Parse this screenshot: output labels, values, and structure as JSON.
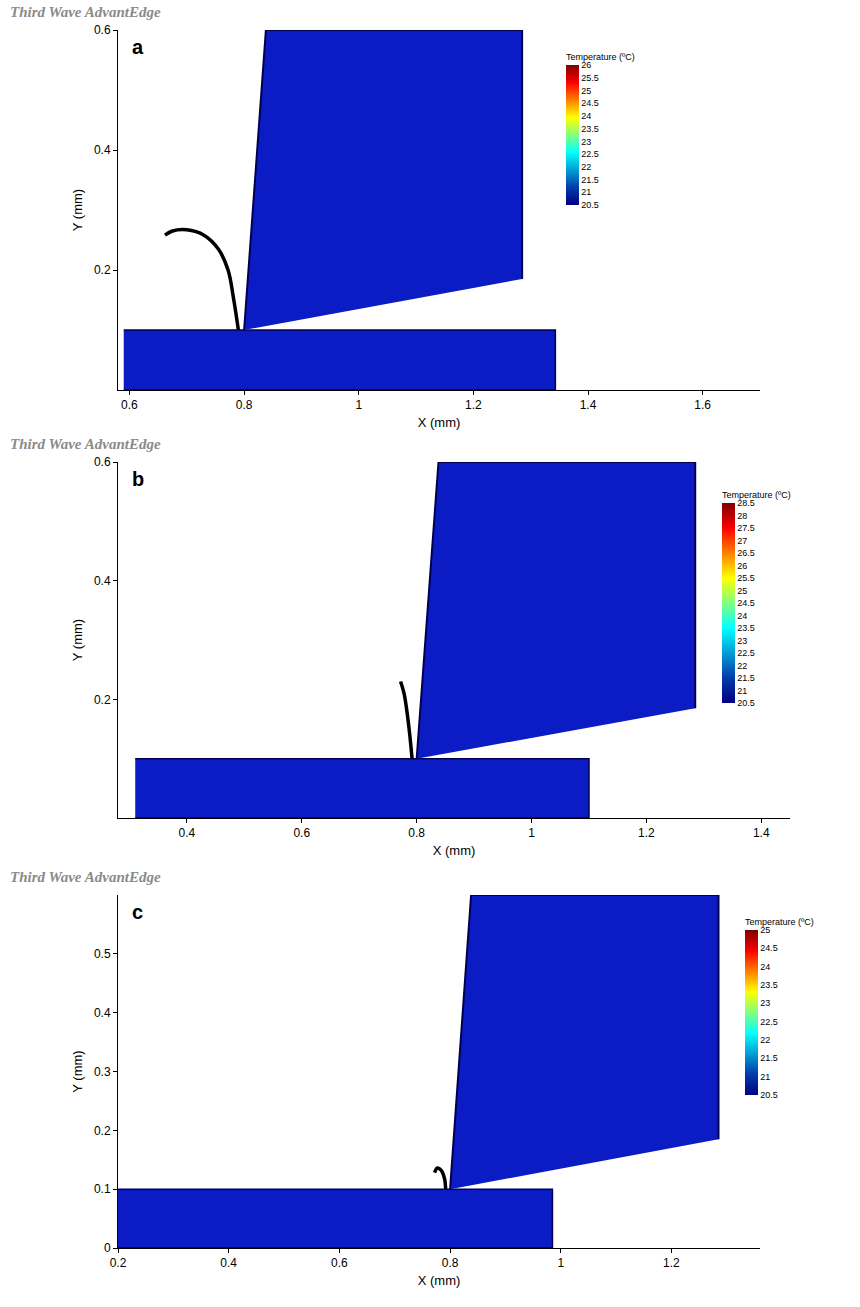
{
  "chart_data": [
    {
      "type": "simulation",
      "panel": "a",
      "watermark": "Third Wave AdvantEdge",
      "x_label": "X (mm)",
      "y_label": "Y (mm)",
      "xlim": [
        0.58,
        1.7
      ],
      "xticks": [
        0.6,
        0.8,
        1,
        1.2,
        1.4,
        1.6
      ],
      "ylim": [
        0,
        0.6
      ],
      "yticks": [
        0.2,
        0.4,
        0.6
      ],
      "color": "#0c1cc4",
      "workpiece": {
        "x": [
          0.59,
          1.343,
          1.343,
          0.59
        ],
        "y": [
          0,
          0,
          0.1,
          0.1
        ]
      },
      "tool": {
        "x": [
          0.8,
          0.838,
          1.285,
          1.285
        ],
        "y": [
          0.1,
          0.6,
          0.6,
          0.185
        ]
      },
      "chip": {
        "x": [
          0.79,
          0.782,
          0.772,
          0.755,
          0.73,
          0.7,
          0.675,
          0.662
        ],
        "y": [
          0.1,
          0.15,
          0.2,
          0.235,
          0.258,
          0.267,
          0.265,
          0.258
        ]
      },
      "colorbar": {
        "title": "Temperature (ºC)",
        "range": [
          20.5,
          26
        ],
        "ticks": [
          20.5,
          21,
          21.5,
          22,
          22.5,
          23,
          23.5,
          24,
          24.5,
          25,
          25.5,
          26
        ]
      }
    },
    {
      "type": "simulation",
      "panel": "b",
      "watermark": "Third Wave AdvantEdge",
      "x_label": "X (mm)",
      "y_label": "Y (mm)",
      "xlim": [
        0.28,
        1.45
      ],
      "xticks": [
        0.4,
        0.6,
        0.8,
        1,
        1.2,
        1.4
      ],
      "ylim": [
        0,
        0.6
      ],
      "yticks": [
        0.2,
        0.4,
        0.6
      ],
      "color": "#0c1cc4",
      "workpiece": {
        "x": [
          0.31,
          1.1,
          1.1,
          0.31
        ],
        "y": [
          0,
          0,
          0.1,
          0.1
        ]
      },
      "tool": {
        "x": [
          0.8,
          0.838,
          1.285,
          1.285
        ],
        "y": [
          0.1,
          0.6,
          0.6,
          0.185
        ]
      },
      "chip": {
        "x": [
          0.792,
          0.788,
          0.783,
          0.778,
          0.772
        ],
        "y": [
          0.1,
          0.14,
          0.18,
          0.21,
          0.23
        ]
      },
      "colorbar": {
        "title": "Temperature (ºC)",
        "range": [
          20.5,
          28.5
        ],
        "ticks": [
          20.5,
          21,
          21.5,
          22,
          22.5,
          23,
          23.5,
          24,
          24.5,
          25,
          25.5,
          26,
          26.5,
          27,
          27.5,
          28,
          28.5
        ]
      }
    },
    {
      "type": "simulation",
      "panel": "c",
      "watermark": "Third Wave AdvantEdge",
      "x_label": "X (mm)",
      "y_label": "Y (mm)",
      "xlim": [
        0.2,
        1.36
      ],
      "xticks": [
        0.2,
        0.4,
        0.6,
        0.8,
        1,
        1.2
      ],
      "ylim": [
        0,
        0.6
      ],
      "yticks": [
        0,
        0.1,
        0.2,
        0.3,
        0.4,
        0.5
      ],
      "color": "#0c1cc4",
      "workpiece": {
        "x": [
          0.2,
          0.985,
          0.985,
          0.2
        ],
        "y": [
          0,
          0,
          0.1,
          0.1
        ]
      },
      "tool": {
        "x": [
          0.8,
          0.838,
          1.285,
          1.285
        ],
        "y": [
          0.1,
          0.6,
          0.6,
          0.185
        ]
      },
      "chip": {
        "x": [
          0.792,
          0.79,
          0.784,
          0.777,
          0.772
        ],
        "y": [
          0.1,
          0.118,
          0.132,
          0.136,
          0.128
        ]
      },
      "colorbar": {
        "title": "Temperature (ºC)",
        "range": [
          20.5,
          25
        ],
        "ticks": [
          20.5,
          21,
          21.5,
          22,
          22.5,
          23,
          23.5,
          24,
          24.5,
          25
        ]
      }
    }
  ]
}
